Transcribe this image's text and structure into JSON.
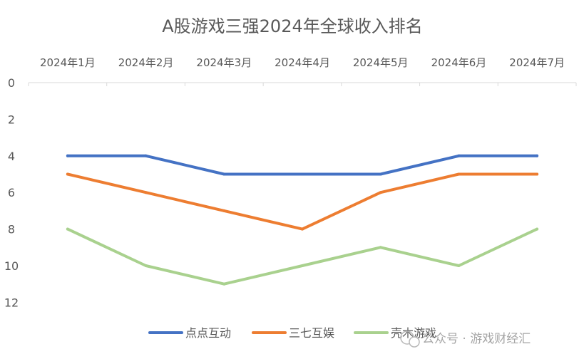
{
  "chart_data": {
    "type": "line",
    "title": "A股游戏三强2024年全球收入排名",
    "x_axis_position": "top",
    "y_axis_reversed": true,
    "categories": [
      "2024年1月",
      "2024年2月",
      "2024年3月",
      "2024年4月",
      "2024年5月",
      "2024年6月",
      "2024年7月"
    ],
    "yticks": [
      "0",
      "2",
      "4",
      "6",
      "8",
      "10",
      "12"
    ],
    "ylim": [
      0,
      12
    ],
    "grid": false,
    "legend": "bottom",
    "series": [
      {
        "name": "点点互动",
        "color": "#4472C4",
        "values": [
          4,
          4,
          5,
          5,
          5,
          4,
          4
        ]
      },
      {
        "name": "三七互娱",
        "color": "#ED7D31",
        "values": [
          5,
          6,
          7,
          8,
          6,
          5,
          5
        ]
      },
      {
        "name": "壳木游戏",
        "color": "#A9D18E",
        "values": [
          8,
          10,
          11,
          10,
          9,
          10,
          8
        ]
      }
    ]
  },
  "watermark": {
    "text": "公众号 · 游戏财经汇"
  }
}
